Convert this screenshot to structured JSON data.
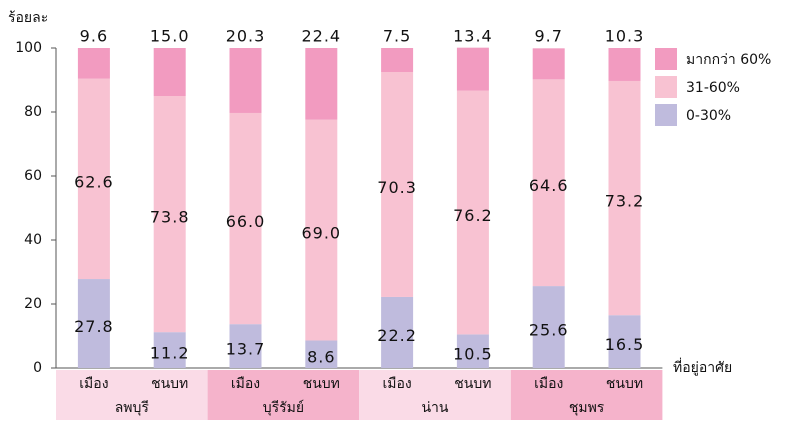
{
  "chart_data": {
    "type": "stacked-bar",
    "y_label": "ร้อยละ",
    "x_label": "ที่อยู่อาศัย",
    "categories": [
      "เมือง",
      "ชนบท",
      "เมือง",
      "ชนบท",
      "เมือง",
      "ชนบท",
      "เมือง",
      "ชนบท"
    ],
    "groups": [
      "ลพบุรี",
      "บุรีรัมย์",
      "น่าน",
      "ชุมพร"
    ],
    "series": [
      {
        "name": "0-30%",
        "color": "#bfbbdd",
        "values": [
          27.8,
          11.2,
          13.7,
          8.6,
          22.2,
          10.5,
          25.6,
          16.5
        ],
        "value_labels": [
          "27.8",
          "11.2",
          "13.7",
          "8.6",
          "22.2",
          "10.5",
          "25.6",
          "16.5"
        ]
      },
      {
        "name": "31-60%",
        "color": "#f8c2d2",
        "values": [
          62.6,
          73.8,
          66,
          69,
          70.3,
          76.2,
          64.6,
          73.2
        ],
        "value_labels": [
          "62.6",
          "73.8",
          "66.0",
          "69.0",
          "70.3",
          "76.2",
          "64.6",
          "73.2"
        ]
      },
      {
        "name": "มากกว่า 60%",
        "color": "#f29bc0",
        "values": [
          9.6,
          15,
          20.3,
          22.4,
          7.5,
          13.4,
          9.7,
          10.3
        ],
        "value_labels": [
          "9.6",
          "15.0",
          "20.3",
          "22.4",
          "7.5",
          "13.4",
          "9.7",
          "10.3"
        ]
      }
    ],
    "ylim": [
      0,
      100
    ],
    "yticks": [
      0,
      20,
      40,
      60,
      80,
      100
    ],
    "group_colors": [
      "#fadbe7",
      "#f5b3cb"
    ],
    "legend": "right"
  }
}
